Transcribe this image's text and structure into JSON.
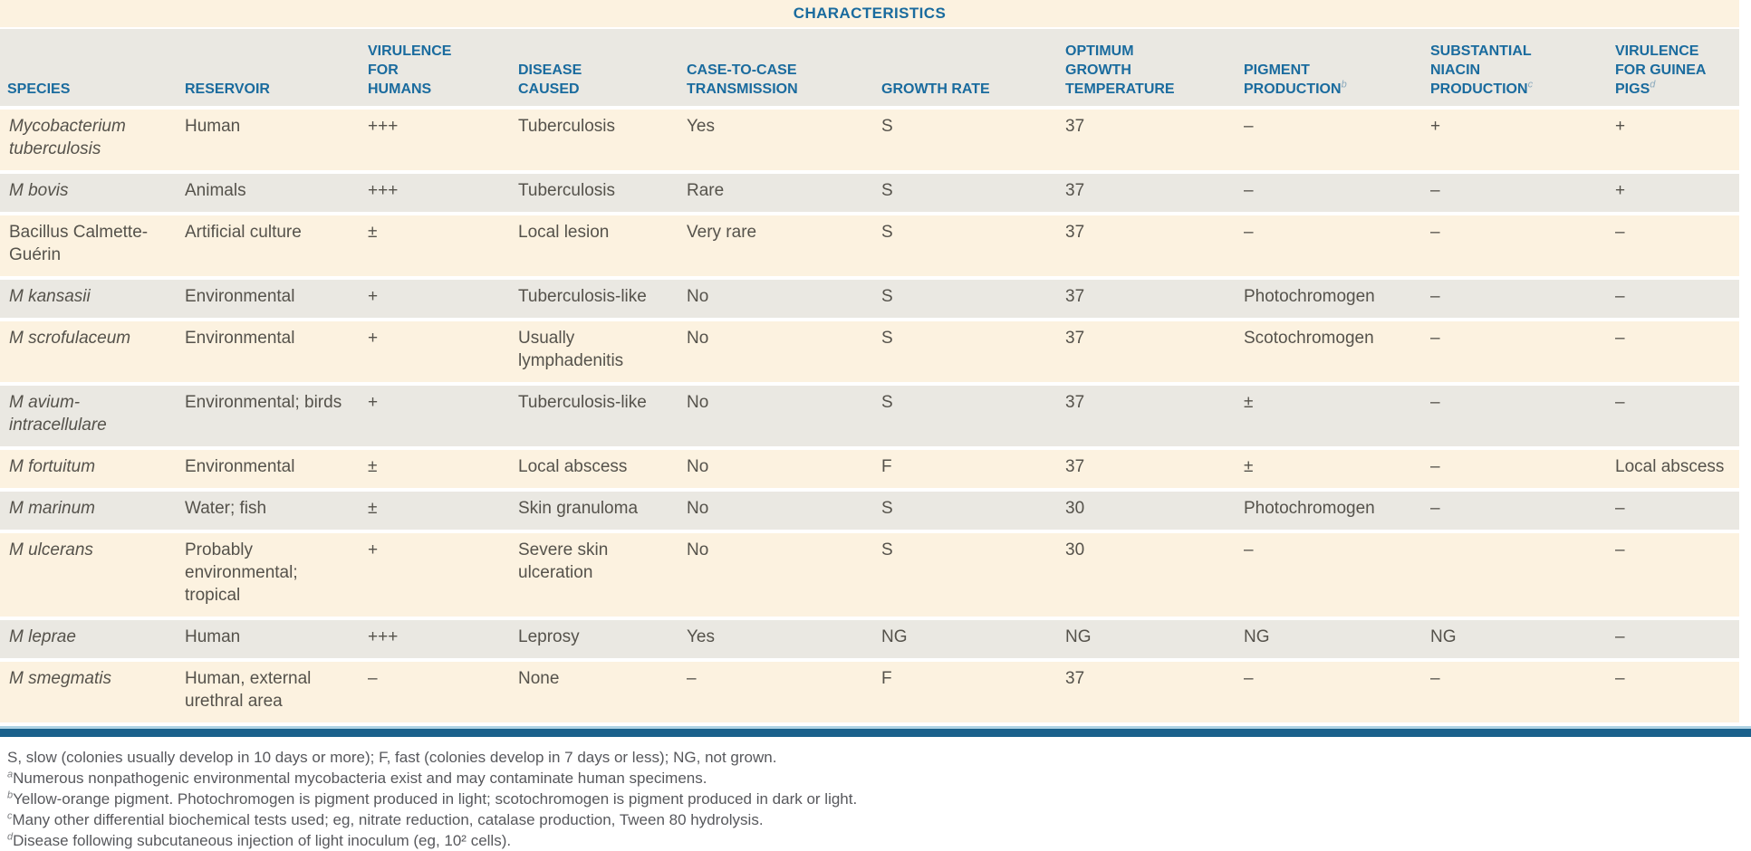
{
  "title": "CHARACTERISTICS",
  "columns": [
    {
      "label": "SPECIES",
      "sup": ""
    },
    {
      "label": "RESERVOIR",
      "sup": ""
    },
    {
      "label": "VIRULENCE\nFOR\nHUMANS",
      "sup": ""
    },
    {
      "label": "DISEASE\nCAUSED",
      "sup": ""
    },
    {
      "label": "CASE-TO-CASE\nTRANSMISSION",
      "sup": ""
    },
    {
      "label": "GROWTH RATE",
      "sup": ""
    },
    {
      "label": "OPTIMUM\nGROWTH\nTEMPERATURE",
      "sup": ""
    },
    {
      "label": "PIGMENT\nPRODUCTION",
      "sup": "b"
    },
    {
      "label": "SUBSTANTIAL\nNIACIN\nPRODUCTION",
      "sup": "c"
    },
    {
      "label": "VIRULENCE\nFOR GUINEA\nPIGS",
      "sup": "d"
    }
  ],
  "rows": [
    {
      "species": "Mycobacterium tuberculosis",
      "species_italic": true,
      "reservoir": "Human",
      "virulence_humans": "+++",
      "disease": "Tuberculosis",
      "transmission": "Yes",
      "growth_rate": "S",
      "optimum_temp": "37",
      "pigment": "–",
      "niacin": "+",
      "guinea_pigs": "+"
    },
    {
      "species": "M bovis",
      "species_italic": true,
      "reservoir": "Animals",
      "virulence_humans": "+++",
      "disease": "Tuberculosis",
      "transmission": "Rare",
      "growth_rate": "S",
      "optimum_temp": "37",
      "pigment": "–",
      "niacin": "–",
      "guinea_pigs": "+"
    },
    {
      "species": "Bacillus Calmette-Guérin",
      "species_italic": false,
      "reservoir": "Artificial culture",
      "virulence_humans": "±",
      "disease": "Local lesion",
      "transmission": "Very rare",
      "growth_rate": "S",
      "optimum_temp": "37",
      "pigment": "–",
      "niacin": "–",
      "guinea_pigs": "–"
    },
    {
      "species": "M kansasii",
      "species_italic": true,
      "reservoir": "Environmental",
      "virulence_humans": "+",
      "disease": "Tuberculosis-like",
      "transmission": "No",
      "growth_rate": "S",
      "optimum_temp": "37",
      "pigment": "Photochromogen",
      "niacin": "–",
      "guinea_pigs": "–"
    },
    {
      "species": "M scrofulaceum",
      "species_italic": true,
      "reservoir": "Environmental",
      "virulence_humans": "+",
      "disease": "Usually lymphadenitis",
      "transmission": "No",
      "growth_rate": "S",
      "optimum_temp": "37",
      "pigment": "Scotochromogen",
      "niacin": "–",
      "guinea_pigs": "–"
    },
    {
      "species": "M avium-intracellulare",
      "species_italic": true,
      "reservoir": "Environmental; birds",
      "virulence_humans": "+",
      "disease": "Tuberculosis-like",
      "transmission": "No",
      "growth_rate": "S",
      "optimum_temp": "37",
      "pigment": "±",
      "niacin": "–",
      "guinea_pigs": "–"
    },
    {
      "species": "M fortuitum",
      "species_italic": true,
      "reservoir": "Environmental",
      "virulence_humans": "±",
      "disease": "Local abscess",
      "transmission": "No",
      "growth_rate": "F",
      "optimum_temp": "37",
      "pigment": "±",
      "niacin": "–",
      "guinea_pigs": "Local abscess"
    },
    {
      "species": "M marinum",
      "species_italic": true,
      "reservoir": "Water; fish",
      "virulence_humans": "±",
      "disease": "Skin granuloma",
      "transmission": "No",
      "growth_rate": "S",
      "optimum_temp": "30",
      "pigment": "Photochromogen",
      "niacin": "–",
      "guinea_pigs": "–"
    },
    {
      "species": "M ulcerans",
      "species_italic": true,
      "reservoir": "Probably environmental; tropical",
      "virulence_humans": "+",
      "disease": "Severe skin ulceration",
      "transmission": "No",
      "growth_rate": "S",
      "optimum_temp": "30",
      "pigment": "–",
      "niacin": "",
      "guinea_pigs": "–"
    },
    {
      "species": "M leprae",
      "species_italic": true,
      "reservoir": "Human",
      "virulence_humans": "+++",
      "disease": "Leprosy",
      "transmission": "Yes",
      "growth_rate": "NG",
      "optimum_temp": "NG",
      "pigment": "NG",
      "niacin": "NG",
      "guinea_pigs": "–"
    },
    {
      "species": "M smegmatis",
      "species_italic": true,
      "reservoir": "Human, external urethral area",
      "virulence_humans": "–",
      "disease": "None",
      "transmission": "–",
      "growth_rate": "F",
      "optimum_temp": "37",
      "pigment": "–",
      "niacin": "–",
      "guinea_pigs": "–"
    }
  ],
  "footnotes": [
    {
      "sup": "",
      "text": "S, slow (colonies usually develop in 10 days or more); F, fast (colonies develop in 7 days or less); NG, not grown."
    },
    {
      "sup": "a",
      "text": "Numerous nonpathogenic environmental mycobacteria exist and may contaminate human specimens."
    },
    {
      "sup": "b",
      "text": "Yellow-orange pigment. Photochromogen is pigment produced in light; scotochromogen is pigment produced in dark or light."
    },
    {
      "sup": "c",
      "text": "Many other differential biochemical tests used; eg, nitrate reduction, catalase production, Tween 80 hydrolysis."
    },
    {
      "sup": "d",
      "text": "Disease following subcutaneous injection of light inoculum (eg, 10² cells)."
    }
  ],
  "colors": {
    "header_blue": "#1a6b9e",
    "row_cream": "#fcf2e0",
    "row_gray": "#eae8e2",
    "rule_dark_blue": "#1a618c",
    "rule_light_blue": "#aed2e3",
    "body_text": "#55524b",
    "footnote_text": "#57585c"
  }
}
